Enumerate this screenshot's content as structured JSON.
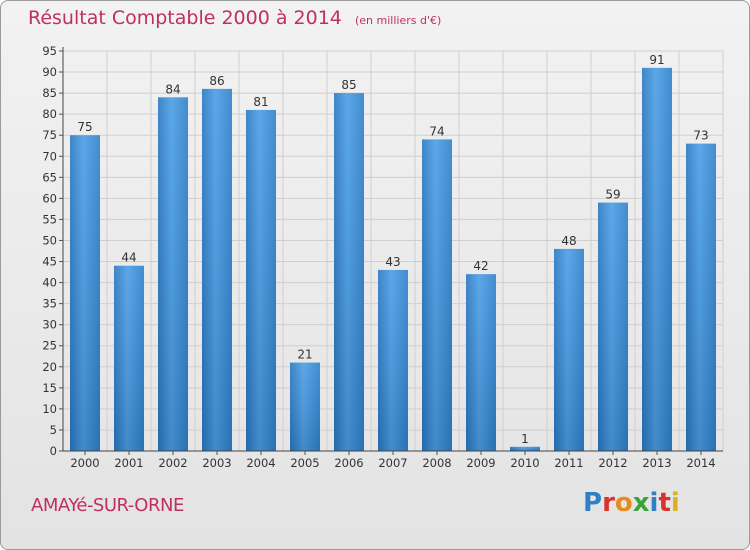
{
  "chart_data": {
    "type": "bar",
    "title": "Résultat Comptable 2000 à 2014",
    "subtitle": "(en milliers d'€)",
    "categories": [
      "2000",
      "2001",
      "2002",
      "2003",
      "2004",
      "2005",
      "2006",
      "2007",
      "2008",
      "2009",
      "2010",
      "2011",
      "2012",
      "2013",
      "2014"
    ],
    "values": [
      75,
      44,
      84,
      86,
      81,
      21,
      85,
      43,
      74,
      42,
      1,
      48,
      59,
      91,
      73
    ],
    "ylim": [
      0,
      95
    ],
    "yticks": [
      0,
      5,
      10,
      15,
      20,
      25,
      30,
      35,
      40,
      45,
      50,
      55,
      60,
      65,
      70,
      75,
      80,
      85,
      90,
      95
    ],
    "grid": true,
    "bar_color": "#3a8fd8",
    "xlabel": "",
    "ylabel": ""
  },
  "commune": "AMAYé-SUR-ORNE",
  "logo": {
    "text": "Proxiti",
    "colors": [
      "#2e7fc4",
      "#d9322e",
      "#e98a1e",
      "#3aa33a",
      "#2e7fc4",
      "#d9322e",
      "#e0b020"
    ]
  },
  "colors": {
    "title": "#c0305e",
    "axis": "#333333",
    "grid": "#cfcfcf"
  }
}
